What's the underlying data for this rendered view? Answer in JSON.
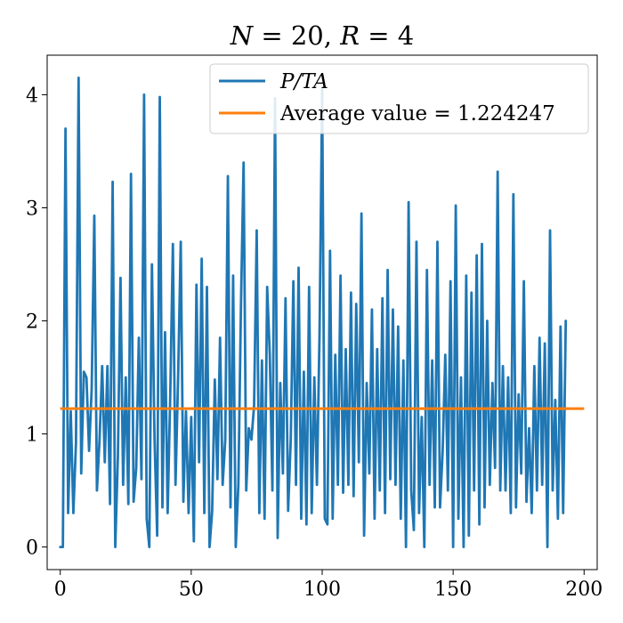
{
  "chart_data": {
    "type": "line",
    "title": "N = 20, R = 4",
    "title_parts": {
      "n_sym": "N",
      "n_eq": " = 20, ",
      "r_sym": "R",
      "r_eq": " = 4"
    },
    "xlabel": "",
    "ylabel": "",
    "xlim": [
      -5,
      205
    ],
    "ylim": [
      -0.2,
      4.35
    ],
    "xticks": [
      0,
      50,
      100,
      150,
      200
    ],
    "xtick_labels": [
      "0",
      "50",
      "100",
      "150",
      "200"
    ],
    "yticks": [
      0,
      1,
      2,
      3,
      4
    ],
    "ytick_labels": [
      "0",
      "1",
      "2",
      "3",
      "4"
    ],
    "grid": false,
    "legend_position": "top-right",
    "series": [
      {
        "name": "P/TA",
        "color": "#1f77b4",
        "x_start": 0,
        "x_step": 1,
        "values": [
          0.0,
          0.0,
          3.7,
          0.3,
          1.2,
          0.3,
          0.92,
          4.15,
          0.65,
          1.55,
          1.5,
          0.85,
          1.4,
          2.93,
          0.5,
          0.95,
          1.6,
          0.75,
          1.6,
          0.38,
          3.23,
          0.0,
          0.8,
          2.38,
          0.55,
          1.5,
          0.38,
          3.3,
          0.4,
          0.7,
          1.85,
          0.6,
          4.0,
          0.25,
          0.0,
          2.5,
          0.95,
          0.1,
          3.98,
          0.35,
          1.9,
          0.3,
          1.35,
          2.68,
          0.55,
          1.5,
          2.7,
          0.4,
          1.2,
          0.3,
          1.15,
          0.05,
          2.32,
          0.75,
          2.55,
          0.3,
          2.3,
          0.0,
          0.32,
          1.48,
          0.6,
          1.85,
          0.55,
          0.95,
          3.28,
          0.35,
          2.4,
          0.0,
          0.55,
          2.15,
          3.4,
          0.5,
          1.05,
          0.95,
          1.25,
          2.8,
          0.3,
          1.65,
          0.25,
          2.3,
          1.7,
          0.5,
          3.97,
          0.08,
          1.45,
          0.65,
          2.2,
          0.32,
          0.95,
          2.35,
          0.55,
          2.47,
          0.25,
          1.55,
          0.2,
          2.3,
          0.3,
          1.5,
          0.55,
          1.9,
          4.05,
          0.25,
          0.2,
          2.62,
          0.25,
          1.7,
          0.55,
          2.4,
          0.48,
          1.75,
          0.55,
          2.25,
          0.45,
          2.15,
          0.75,
          2.95,
          0.1,
          1.45,
          0.65,
          2.1,
          0.25,
          1.75,
          0.5,
          2.2,
          0.3,
          2.45,
          0.6,
          2.1,
          0.55,
          1.95,
          0.25,
          1.65,
          0.0,
          3.05,
          0.5,
          0.15,
          2.7,
          0.3,
          1.15,
          0.0,
          2.45,
          0.55,
          1.65,
          0.35,
          2.7,
          0.35,
          0.85,
          1.7,
          0.5,
          2.35,
          0.0,
          3.02,
          0.25,
          1.5,
          0.0,
          2.4,
          0.1,
          2.25,
          0.5,
          2.58,
          0.2,
          2.68,
          0.35,
          2.0,
          0.55,
          1.45,
          0.7,
          3.32,
          0.5,
          1.6,
          0.5,
          1.5,
          0.3,
          3.12,
          0.35,
          1.35,
          0.65,
          2.35,
          0.4,
          1.05,
          0.3,
          1.6,
          0.5,
          1.85,
          0.55,
          1.8,
          0.0,
          2.8,
          0.5,
          1.3,
          0.25,
          1.95,
          0.3,
          2.0
        ]
      },
      {
        "name": "Average value = 1.224247",
        "color": "#ff7f0e",
        "x": [
          0,
          200
        ],
        "values": [
          1.224247,
          1.224247
        ]
      }
    ]
  }
}
